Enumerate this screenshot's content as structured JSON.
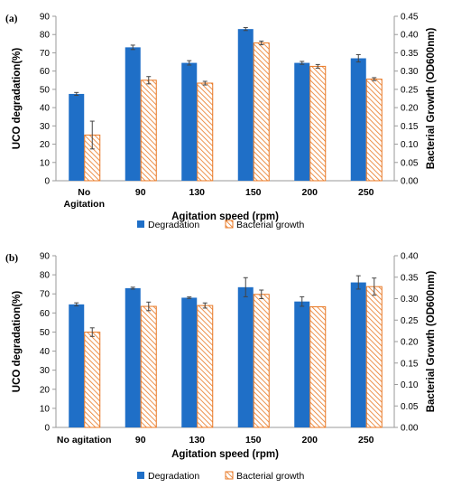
{
  "colors": {
    "degradation": "#1f6fc7",
    "growth_stroke": "#e87722",
    "axis": "#9a9a9a",
    "errbar": "#444444"
  },
  "chart_data": [
    {
      "type": "bar",
      "panel_label": "(a)",
      "categories": [
        "No Agitation",
        "90",
        "130",
        "150",
        "200",
        "250"
      ],
      "xlabel": "Agitation speed (rpm)",
      "ylabel": "UCO degradation(%)",
      "y2label": "Bacterial Growth (OD600nm)",
      "ylim": [
        0,
        90
      ],
      "y_ticks": [
        0,
        10,
        20,
        30,
        40,
        50,
        60,
        70,
        80,
        90
      ],
      "y2lim": [
        0,
        0.45
      ],
      "y2_ticks": [
        "0.00",
        "0.05",
        "0.10",
        "0.15",
        "0.20",
        "0.25",
        "0.30",
        "0.35",
        "0.40",
        "0.45"
      ],
      "legend_position": "bottom",
      "series": [
        {
          "name": "Degradation",
          "axis": "left",
          "values": [
            47.5,
            73,
            64.5,
            83,
            64.5,
            67
          ],
          "errors": [
            0.8,
            1.2,
            1.2,
            0.8,
            0.8,
            2
          ]
        },
        {
          "name": "Bacterial growth",
          "axis": "right",
          "values": [
            0.125,
            0.275,
            0.267,
            0.377,
            0.313,
            0.278
          ],
          "errors": [
            0.038,
            0.01,
            0.005,
            0.005,
            0.005,
            0.004
          ]
        }
      ]
    },
    {
      "type": "bar",
      "panel_label": "(b)",
      "categories": [
        "No agitation",
        "90",
        "130",
        "150",
        "200",
        "250"
      ],
      "xlabel": "Agitation speed (rpm)",
      "ylabel": "UCO degradation(%)",
      "y2label": "Bacterial Growth (OD600nm)",
      "ylim": [
        0,
        90
      ],
      "y_ticks": [
        0,
        10,
        20,
        30,
        40,
        50,
        60,
        70,
        80,
        90
      ],
      "y2lim": [
        0,
        0.4
      ],
      "y2_ticks": [
        "0.00",
        "0.05",
        "0.10",
        "0.15",
        "0.20",
        "0.25",
        "0.30",
        "0.35",
        "0.40"
      ],
      "legend_position": "bottom",
      "series": [
        {
          "name": "Degradation",
          "axis": "left",
          "values": [
            64.5,
            73,
            68,
            73.5,
            66,
            76
          ],
          "errors": [
            0.8,
            0.5,
            0.4,
            5,
            2.5,
            3.5
          ]
        },
        {
          "name": "Bacterial growth",
          "axis": "right",
          "values": [
            0.222,
            0.282,
            0.284,
            0.31,
            0.281,
            0.328
          ],
          "errors": [
            0.01,
            0.01,
            0.006,
            0.01,
            0,
            0.02
          ]
        }
      ]
    }
  ]
}
